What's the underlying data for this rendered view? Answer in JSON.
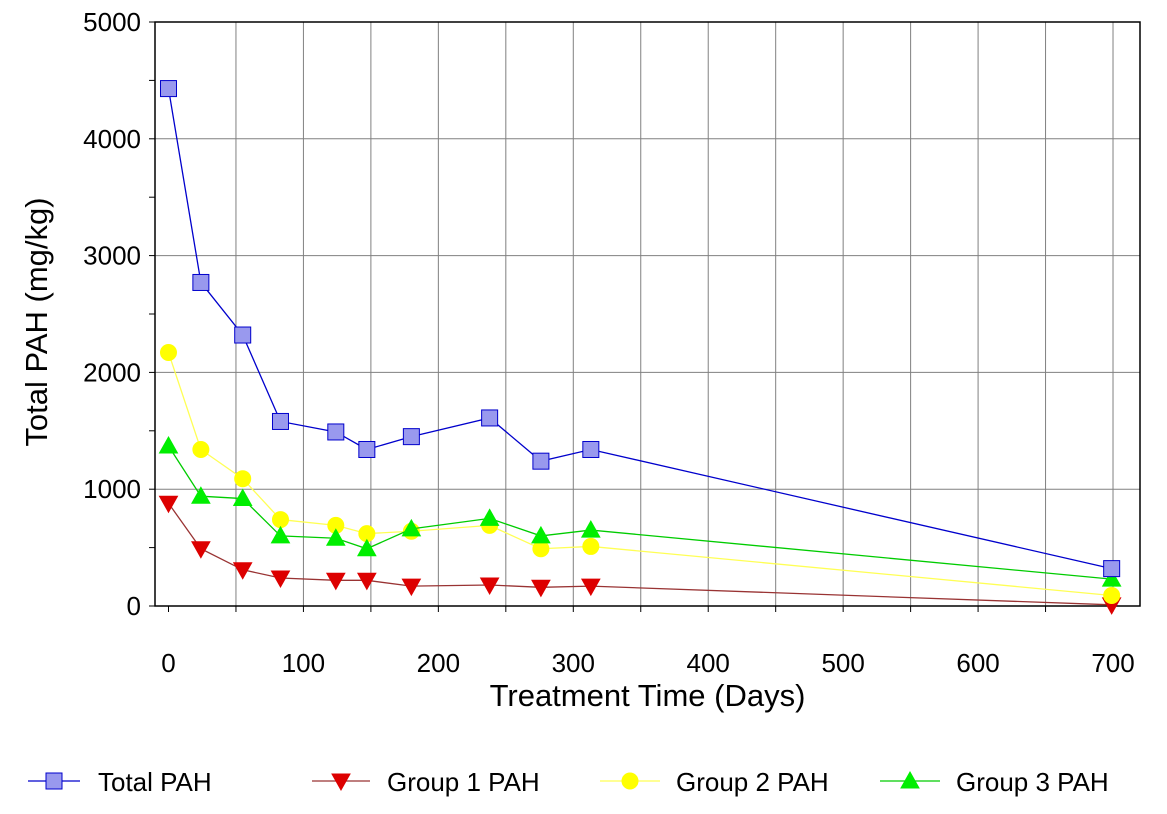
{
  "chart_data": {
    "type": "line",
    "title": "",
    "xlabel": "Treatment Time (Days)",
    "ylabel": "Total PAH (mg/kg)",
    "xlim": [
      -10,
      720
    ],
    "ylim": [
      0,
      5000
    ],
    "x_ticks": [
      0,
      100,
      200,
      300,
      400,
      500,
      600,
      700
    ],
    "y_ticks": [
      0,
      1000,
      2000,
      3000,
      4000,
      5000
    ],
    "grid": true,
    "legend_position": "bottom",
    "series": [
      {
        "name": "Total PAH",
        "color": "#0000cc",
        "marker_fill": "#9999ee",
        "marker": "square",
        "x": [
          0,
          24,
          55,
          83,
          124,
          147,
          180,
          238,
          276,
          313,
          699
        ],
        "y": [
          4430,
          2770,
          2320,
          1580,
          1490,
          1340,
          1450,
          1610,
          1240,
          1340,
          320
        ]
      },
      {
        "name": "Group 1 PAH",
        "color": "#993333",
        "marker_fill": "#dd0000",
        "marker": "triangle-down",
        "x": [
          0,
          24,
          55,
          83,
          124,
          147,
          180,
          238,
          276,
          313,
          699
        ],
        "y": [
          880,
          490,
          310,
          240,
          220,
          220,
          170,
          180,
          160,
          170,
          10
        ]
      },
      {
        "name": "Group 2 PAH",
        "color": "#ffff55",
        "marker_fill": "#ffff00",
        "marker": "circle",
        "x": [
          0,
          24,
          55,
          83,
          124,
          147,
          180,
          238,
          276,
          313,
          699
        ],
        "y": [
          2170,
          1340,
          1090,
          740,
          690,
          620,
          640,
          690,
          490,
          510,
          90
        ]
      },
      {
        "name": "Group 3 PAH",
        "color": "#00cc00",
        "marker_fill": "#00ee00",
        "marker": "triangle-up",
        "x": [
          0,
          24,
          55,
          83,
          124,
          147,
          180,
          238,
          276,
          313,
          699
        ],
        "y": [
          1370,
          940,
          920,
          600,
          580,
          490,
          660,
          750,
          600,
          650,
          230
        ]
      }
    ]
  }
}
